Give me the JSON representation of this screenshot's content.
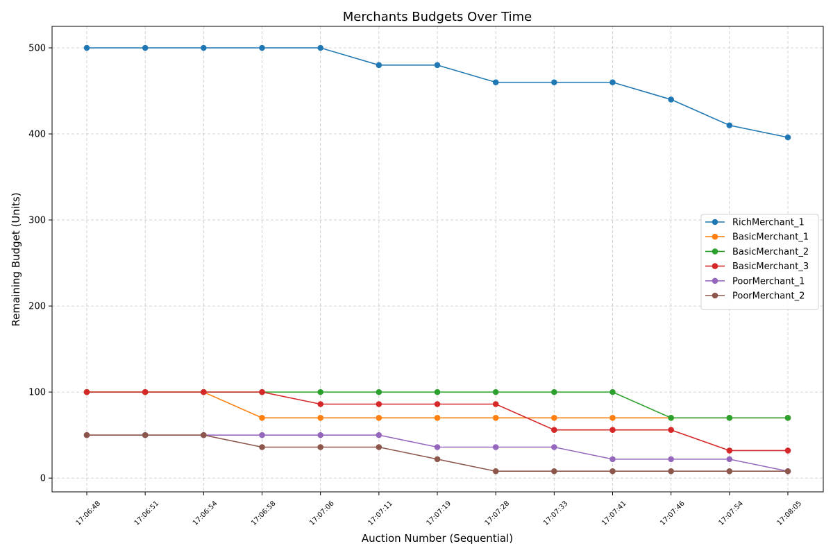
{
  "chart_data": {
    "type": "line",
    "title": "Merchants Budgets Over Time",
    "xlabel": "Auction Number (Sequential)",
    "ylabel": "Remaining Budget (Units)",
    "x": [
      "17:06:48",
      "17:06:51",
      "17:06:54",
      "17:06:58",
      "17:07:06",
      "17:07:11",
      "17:07:19",
      "17:07:28",
      "17:07:33",
      "17:07:41",
      "17:07:46",
      "17:07:54",
      "17:08:05"
    ],
    "ylim": [
      -16,
      525
    ],
    "yticks": [
      0,
      100,
      200,
      300,
      400,
      500
    ],
    "grid": true,
    "legend_position": "center-right",
    "series": [
      {
        "name": "RichMerchant_1",
        "color": "#1f77b4",
        "values": [
          500,
          500,
          500,
          500,
          500,
          480,
          480,
          460,
          460,
          460,
          440,
          410,
          396
        ]
      },
      {
        "name": "BasicMerchant_1",
        "color": "#ff7f0e",
        "values": [
          100,
          100,
          100,
          70,
          70,
          70,
          70,
          70,
          70,
          70,
          70,
          70,
          70
        ]
      },
      {
        "name": "BasicMerchant_2",
        "color": "#2ca02c",
        "values": [
          100,
          100,
          100,
          100,
          100,
          100,
          100,
          100,
          100,
          100,
          70,
          70,
          70
        ]
      },
      {
        "name": "BasicMerchant_3",
        "color": "#d62728",
        "values": [
          100,
          100,
          100,
          100,
          86,
          86,
          86,
          86,
          56,
          56,
          56,
          32,
          32
        ]
      },
      {
        "name": "PoorMerchant_1",
        "color": "#9467bd",
        "values": [
          50,
          50,
          50,
          50,
          50,
          50,
          36,
          36,
          36,
          22,
          22,
          22,
          8
        ]
      },
      {
        "name": "PoorMerchant_2",
        "color": "#8c564b",
        "values": [
          50,
          50,
          50,
          36,
          36,
          36,
          22,
          8,
          8,
          8,
          8,
          8,
          8
        ]
      }
    ]
  }
}
